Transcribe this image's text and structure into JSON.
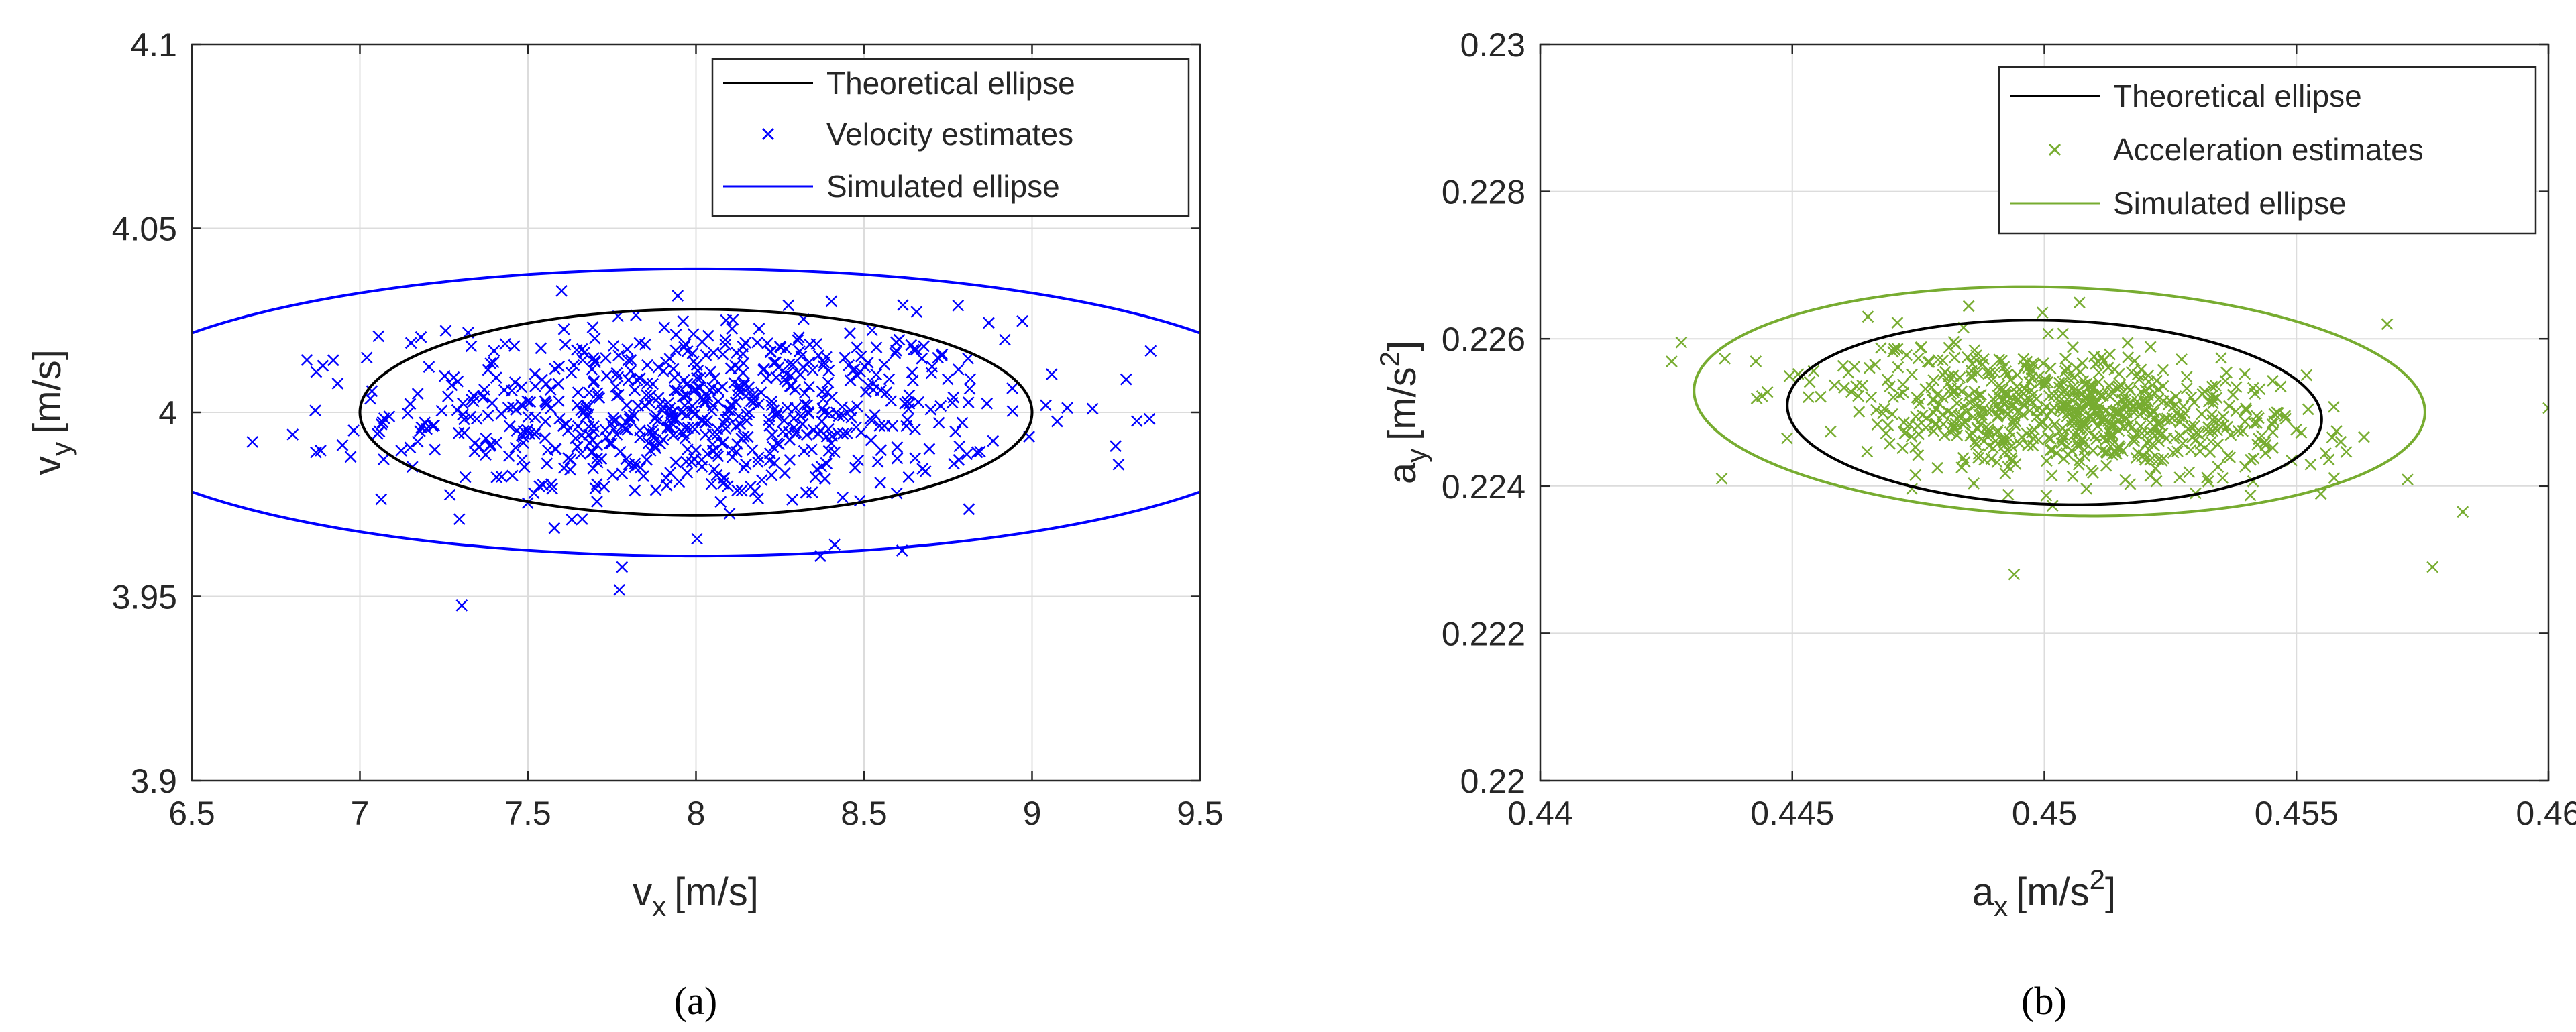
{
  "chart_data": [
    {
      "type": "scatter",
      "panel_label": "(a)",
      "xlabel": {
        "main": "v",
        "sub": "x",
        "unit": "[m/s]"
      },
      "ylabel": {
        "main": "v",
        "sub": "y",
        "unit": "[m/s]"
      },
      "xlim": [
        6.5,
        9.5
      ],
      "ylim": [
        3.9,
        4.1
      ],
      "xticks": [
        6.5,
        7,
        7.5,
        8,
        8.5,
        9,
        9.5
      ],
      "yticks": [
        3.9,
        3.95,
        4,
        4.05,
        4.1
      ],
      "xtick_labels": [
        "6.5",
        "7",
        "7.5",
        "8",
        "8.5",
        "9",
        "9.5"
      ],
      "ytick_labels": [
        "3.9",
        "3.95",
        "4",
        "4.05",
        "4.1"
      ],
      "grid": true,
      "legend_position": "top-right",
      "legend": [
        "Theoretical ellipse",
        "Velocity estimates",
        "Simulated ellipse"
      ],
      "colors": {
        "theoretical": "#000000",
        "estimates": "#0000ff",
        "simulated": "#0000ff"
      },
      "theoretical_ellipse": {
        "center": [
          8.0,
          4.0
        ],
        "semi_x": 1.0,
        "semi_y": 0.028,
        "tilt": 0
      },
      "simulated_ellipse": {
        "center": [
          8.0,
          4.0
        ],
        "semi_x": 1.8,
        "semi_y": 0.039,
        "tilt": 0
      },
      "estimates_cloud": {
        "count": 700,
        "mean": [
          8.0,
          4.0
        ],
        "sd_x": 0.45,
        "sd_y": 0.0125,
        "corr": 0
      },
      "estimates_extremes": [
        [
          6.68,
          3.992
        ],
        [
          6.8,
          3.994
        ],
        [
          6.87,
          4.011
        ],
        [
          9.28,
          4.009
        ],
        [
          9.18,
          4.001
        ],
        [
          7.78,
          3.958
        ],
        [
          8.37,
          3.961
        ],
        [
          7.6,
          4.033
        ],
        [
          8.78,
          4.029
        ]
      ]
    },
    {
      "type": "scatter",
      "panel_label": "(b)",
      "xlabel": {
        "main": "a",
        "sub": "x",
        "unit": "[m/s",
        "sup": "2",
        "close": "]"
      },
      "ylabel": {
        "main": "a",
        "sub": "y",
        "unit": "[m/s",
        "sup": "2",
        "close": "]"
      },
      "xlim": [
        0.44,
        0.46
      ],
      "ylim": [
        0.22,
        0.23
      ],
      "xticks": [
        0.44,
        0.445,
        0.45,
        0.455,
        0.46
      ],
      "yticks": [
        0.22,
        0.222,
        0.224,
        0.226,
        0.228,
        0.23
      ],
      "xtick_labels": [
        "0.44",
        "0.445",
        "0.45",
        "0.455",
        "0.46"
      ],
      "ytick_labels": [
        "0.22",
        "0.222",
        "0.224",
        "0.226",
        "0.228",
        "0.23"
      ],
      "grid": true,
      "legend_position": "top-right",
      "legend": [
        "Theoretical ellipse",
        "Acceleration estimates",
        "Simulated ellipse"
      ],
      "colors": {
        "theoretical": "#000000",
        "estimates": "#77ac30",
        "simulated": "#77ac30"
      },
      "theoretical_ellipse": {
        "center": [
          0.4502,
          0.225
        ],
        "semi_x": 0.0053,
        "semi_y": 0.00125,
        "tilt": -0.018
      },
      "simulated_ellipse": {
        "center": [
          0.4503,
          0.22515
        ],
        "semi_x": 0.00725,
        "semi_y": 0.00155,
        "tilt": -0.02
      },
      "estimates_cloud": {
        "count": 700,
        "mean": [
          0.4503,
          0.225
        ],
        "sd_x": 0.0024,
        "sd_y": 0.00045,
        "corr": -0.3
      },
      "estimates_extremes": [
        [
          0.4428,
          0.22595
        ],
        [
          0.4436,
          0.2241
        ],
        [
          0.4583,
          0.22365
        ],
        [
          0.4577,
          0.2229
        ],
        [
          0.4494,
          0.2228
        ],
        [
          0.4568,
          0.2262
        ],
        [
          0.4465,
          0.2263
        ]
      ]
    }
  ]
}
